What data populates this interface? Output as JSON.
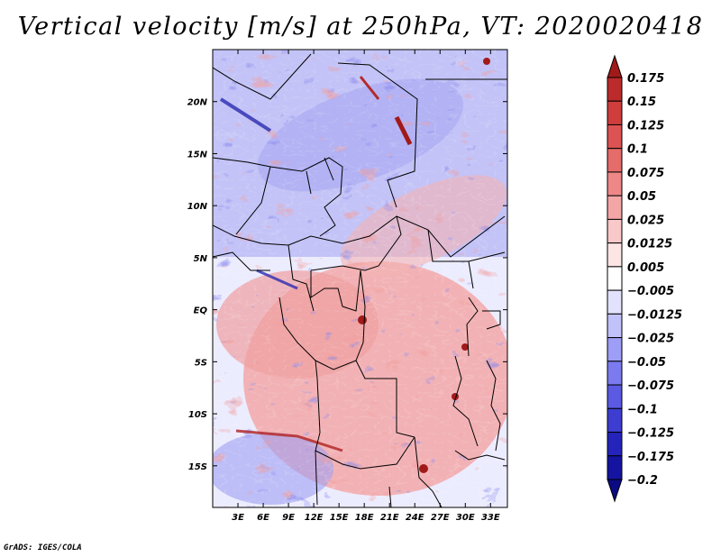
{
  "title": "Vertical velocity [m/s] at 250hPa, VT: 2020020418",
  "credit": "GrADS: IGES/COLA",
  "map": {
    "region": "Central Africa",
    "variable": "Vertical velocity",
    "units": "m/s",
    "level": "250hPa",
    "valid_time": "2020020418",
    "lon_range": [
      0,
      35
    ],
    "lat_range": [
      -19,
      25
    ],
    "lon_ticks": [
      "3E",
      "6E",
      "9E",
      "12E",
      "15E",
      "18E",
      "21E",
      "24E",
      "27E",
      "30E",
      "33E"
    ],
    "lat_ticks": [
      "20N",
      "15N",
      "10N",
      "5N",
      "EQ",
      "5S",
      "10S",
      "15S"
    ]
  },
  "colorbar": {
    "levels": [
      "0.175",
      "0.15",
      "0.125",
      "0.1",
      "0.075",
      "0.05",
      "0.025",
      "0.0125",
      "0.005",
      "-0.005",
      "-0.0125",
      "-0.025",
      "-0.05",
      "-0.075",
      "-0.1",
      "-0.125",
      "-0.175",
      "-0.2"
    ],
    "colors": [
      "#a11a1a",
      "#bb2b2b",
      "#cf3d3d",
      "#dd5252",
      "#e66b6b",
      "#ee8888",
      "#f4a6a6",
      "#f9c8c8",
      "#fde5e5",
      "#ffffff",
      "#e2e2fd",
      "#c2c2fb",
      "#9e9ef6",
      "#7b7bef",
      "#5a5ae3",
      "#3d3dd2",
      "#2424bb",
      "#1414a0",
      "#0a0a82"
    ]
  }
}
